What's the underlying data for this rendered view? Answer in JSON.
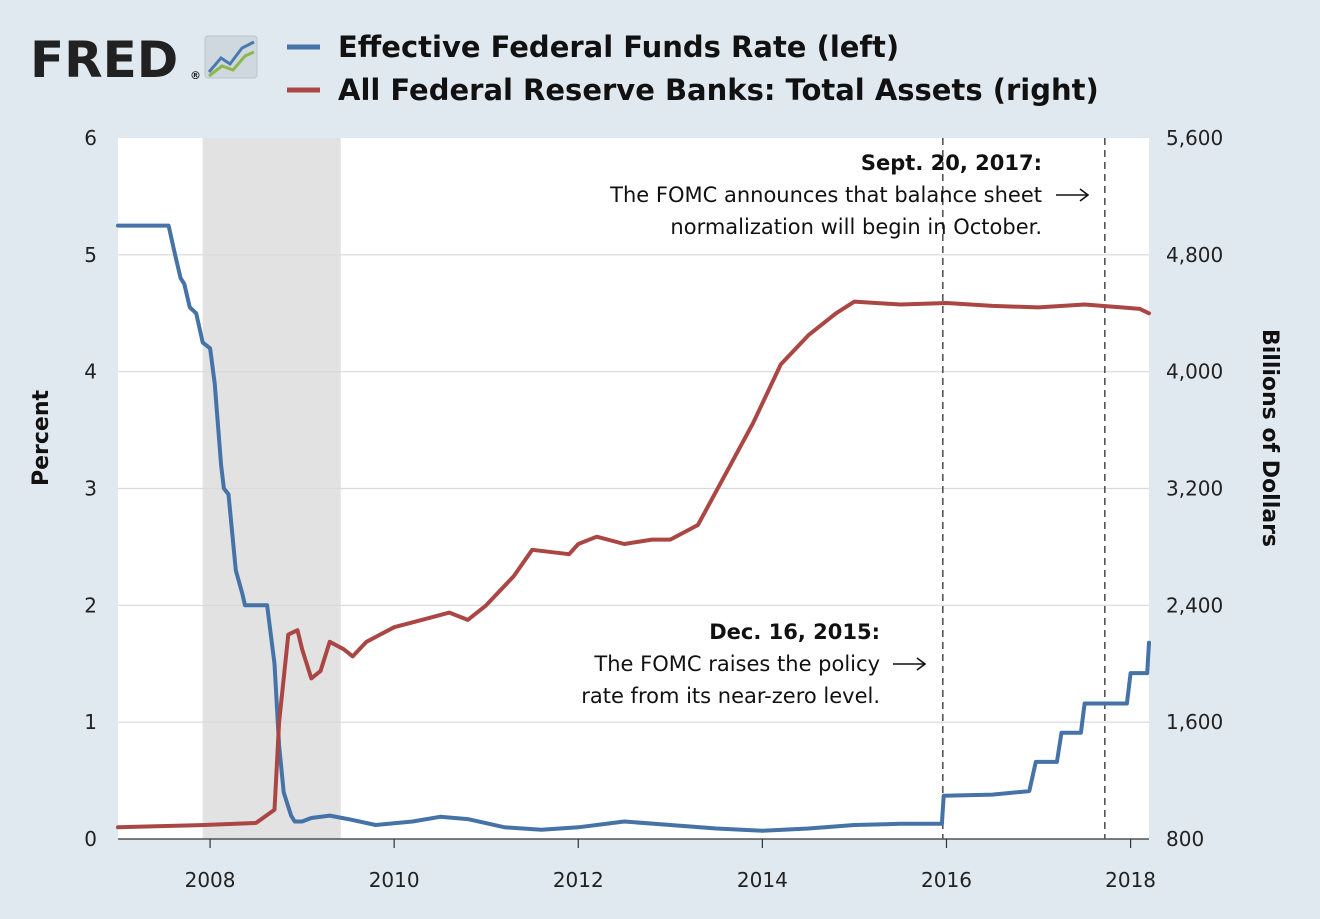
{
  "logo": {
    "text": "FRED",
    "mark": "®"
  },
  "colors": {
    "background": "#e1e9f0",
    "plot": "#ffffff",
    "fedfunds": "#4572a7",
    "assets": "#aa4643",
    "recession": "#e2e2e2",
    "grid": "#d9d9d9"
  },
  "chart_data": {
    "type": "line",
    "title": "",
    "xlabel": "",
    "ylabel_left": "Percent",
    "ylabel_right": "Billions of Dollars",
    "xlim": [
      2007.0,
      2018.2
    ],
    "ylim_left": [
      0,
      6
    ],
    "ylim_right": [
      800,
      5600
    ],
    "x_ticks": [
      "2008",
      "2010",
      "2012",
      "2014",
      "2016",
      "2018"
    ],
    "y_ticks_left": [
      "0",
      "1",
      "2",
      "3",
      "4",
      "5",
      "6"
    ],
    "y_ticks_right": [
      "800",
      "1,600",
      "2,400",
      "3,200",
      "4,000",
      "4,800",
      "5,600"
    ],
    "grid": true,
    "legend_position": "top",
    "recession_shading": [
      2007.92,
      2009.42
    ],
    "series": [
      {
        "name": "Effective Federal Funds Rate (left)",
        "axis": "left",
        "x": [
          2007.0,
          2007.3,
          2007.55,
          2007.62,
          2007.68,
          2007.72,
          2007.78,
          2007.85,
          2007.92,
          2008.0,
          2008.05,
          2008.12,
          2008.15,
          2008.2,
          2008.28,
          2008.35,
          2008.38,
          2008.45,
          2008.5,
          2008.62,
          2008.7,
          2008.75,
          2008.8,
          2008.88,
          2008.92,
          2009.0,
          2009.1,
          2009.3,
          2009.5,
          2009.8,
          2010.2,
          2010.5,
          2010.8,
          2011.2,
          2011.6,
          2012.0,
          2012.5,
          2013.0,
          2013.5,
          2014.0,
          2014.5,
          2015.0,
          2015.5,
          2015.95,
          2015.97,
          2016.5,
          2016.9,
          2016.97,
          2017.2,
          2017.25,
          2017.46,
          2017.5,
          2017.96,
          2018.0,
          2018.18,
          2018.2
        ],
        "values": [
          5.25,
          5.25,
          5.25,
          5.0,
          4.8,
          4.75,
          4.55,
          4.5,
          4.25,
          4.2,
          3.9,
          3.2,
          3.0,
          2.95,
          2.3,
          2.1,
          2.0,
          2.0,
          2.0,
          2.0,
          1.5,
          0.8,
          0.4,
          0.2,
          0.15,
          0.15,
          0.18,
          0.2,
          0.17,
          0.12,
          0.15,
          0.19,
          0.17,
          0.1,
          0.08,
          0.1,
          0.15,
          0.12,
          0.09,
          0.07,
          0.09,
          0.12,
          0.13,
          0.13,
          0.37,
          0.38,
          0.41,
          0.66,
          0.66,
          0.91,
          0.91,
          1.16,
          1.16,
          1.42,
          1.42,
          1.68
        ]
      },
      {
        "name": "All Federal Reserve Banks: Total Assets (right)",
        "axis": "right",
        "x": [
          2007.0,
          2007.9,
          2008.5,
          2008.7,
          2008.75,
          2008.85,
          2008.95,
          2009.0,
          2009.1,
          2009.2,
          2009.3,
          2009.45,
          2009.55,
          2009.7,
          2010.0,
          2010.3,
          2010.6,
          2010.8,
          2011.0,
          2011.3,
          2011.5,
          2011.9,
          2012.0,
          2012.2,
          2012.5,
          2012.8,
          2013.0,
          2013.3,
          2013.6,
          2013.9,
          2014.2,
          2014.5,
          2014.8,
          2015.0,
          2015.5,
          2016.0,
          2016.5,
          2017.0,
          2017.5,
          2017.9,
          2018.1,
          2018.2
        ],
        "values": [
          880,
          895,
          910,
          1000,
          1600,
          2200,
          2230,
          2100,
          1900,
          1950,
          2150,
          2100,
          2050,
          2150,
          2250,
          2300,
          2350,
          2300,
          2400,
          2600,
          2780,
          2750,
          2820,
          2870,
          2820,
          2850,
          2850,
          2950,
          3300,
          3650,
          4050,
          4250,
          4400,
          4480,
          4460,
          4470,
          4450,
          4440,
          4460,
          4440,
          4430,
          4400
        ]
      }
    ],
    "annotations": [
      {
        "x": 2015.96,
        "title": "Dec. 16, 2015:",
        "lines": [
          "The FOMC raises the policy",
          "rate from its near-zero level."
        ]
      },
      {
        "x": 2017.72,
        "title": "Sept. 20, 2017:",
        "lines": [
          "The FOMC announces that balance sheet",
          "normalization will begin in October."
        ]
      }
    ]
  }
}
